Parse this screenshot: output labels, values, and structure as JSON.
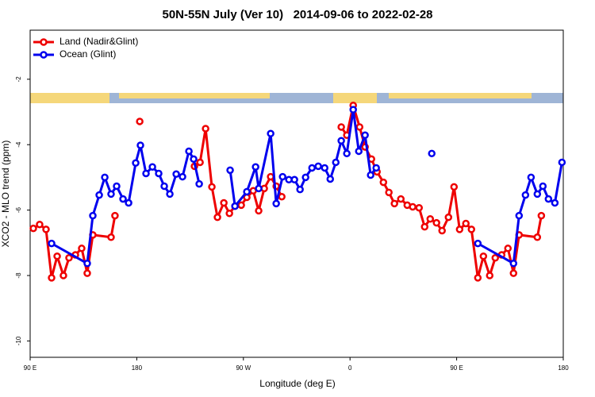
{
  "chart_data": {
    "type": "line",
    "title": "50N-55N July (Ver 10)   2014-09-06 to 2022-02-28",
    "xlabel": "Longitude (deg E)",
    "ylabel": "XCO2 - MLO trend (ppm)",
    "xlim": [
      90,
      540
    ],
    "xticks": [
      {
        "value": 90,
        "label": "90 E"
      },
      {
        "value": 180,
        "label": "180"
      },
      {
        "value": 270,
        "label": "90 W"
      },
      {
        "value": 360,
        "label": "0"
      },
      {
        "value": 450,
        "label": "90 E"
      },
      {
        "value": 540,
        "label": "180"
      }
    ],
    "ylim": [
      -10.5,
      -0.5
    ],
    "yticks": [
      -2,
      -4,
      -6,
      -8,
      -10
    ],
    "legend": "upper left",
    "series": [
      {
        "name": "Land (Nadir&Glint)",
        "color": "#ee0000",
        "x": [
          92.7,
          98.0,
          103.4,
          108.1,
          112.8,
          118.1,
          122.8,
          128.2,
          133.5,
          138.2,
          142.9,
          158.3,
          161.6,
          172,
          182.5,
          205,
          228.7,
          233.4,
          238.1,
          243.4,
          248.1,
          253.5,
          258.2,
          262.9,
          268.2,
          272.9,
          278.3,
          282.9,
          287.6,
          293.0,
          297.7,
          302.4,
          327,
          352.6,
          357.3,
          362.7,
          368.1,
          372.7,
          378.1,
          382.8,
          388.2,
          392.8,
          397.5,
          402.9,
          408.3,
          412.9,
          418.3,
          423.0,
          427.7,
          433.0,
          437.7,
          443.1,
          447.8,
          452.5,
          457.8,
          462.5,
          467.9,
          472.6,
          477.9,
          482.6,
          488.0,
          493.3,
          498.0,
          502.7,
          518.1,
          521.5
        ],
        "values": [
          -6.56,
          -6.44,
          -6.59,
          -8.07,
          -7.41,
          -8.0,
          -7.46,
          -7.37,
          -7.17,
          -7.93,
          -6.76,
          -6.83,
          -6.17,
          null,
          -3.29,
          null,
          -4.66,
          -4.54,
          -3.51,
          -5.29,
          -6.22,
          -5.78,
          -6.1,
          -5.88,
          -5.85,
          -5.61,
          -5.41,
          -6.02,
          -5.34,
          -4.98,
          -5.27,
          -5.59,
          null,
          -3.46,
          -3.71,
          -2.8,
          -3.46,
          -4.07,
          -4.44,
          -4.83,
          -5.15,
          -5.46,
          -5.8,
          -5.66,
          -5.85,
          -5.9,
          -5.93,
          -6.51,
          -6.27,
          -6.39,
          -6.63,
          -6.22,
          -5.29,
          -6.59,
          -6.41,
          -6.59,
          -8.07,
          -7.41,
          -8.0,
          -7.46,
          -7.37,
          -7.17,
          -7.93,
          -6.76,
          -6.83,
          -6.17
        ]
      },
      {
        "name": "Ocean (Glint)",
        "color": "#0000ee",
        "x": [
          108.1,
          138.2,
          142.9,
          148.3,
          153.0,
          158.3,
          163.0,
          168.4,
          173.1,
          179.1,
          183.1,
          187.8,
          193.2,
          198.5,
          203.2,
          207.9,
          213.3,
          218.6,
          224.0,
          228.0,
          232.7,
          249,
          258.8,
          262.9,
          272.9,
          280.3,
          282.9,
          293.0,
          297.7,
          303.1,
          308.4,
          313.1,
          317.8,
          322.5,
          327.9,
          333.2,
          338.6,
          343.3,
          348.0,
          352.6,
          357.3,
          362.7,
          367.4,
          372.7,
          377.4,
          382.1,
          420,
          429.0,
          445,
          467.9,
          498.0,
          502.7,
          508.1,
          512.8,
          518.1,
          522.8,
          527.5,
          532.9,
          538.9
        ],
        "values": [
          -7.02,
          -7.63,
          -6.17,
          -5.54,
          -5.0,
          -5.51,
          -5.27,
          -5.66,
          -5.78,
          -4.56,
          -4.02,
          -4.88,
          -4.68,
          -4.88,
          -5.27,
          -5.51,
          -4.9,
          -4.98,
          -4.2,
          -4.44,
          -5.2,
          null,
          -4.78,
          -5.88,
          -5.44,
          -4.68,
          -5.34,
          -3.66,
          -5.8,
          -4.98,
          -5.07,
          -5.07,
          -5.37,
          -5.0,
          -4.71,
          -4.66,
          -4.71,
          -5.05,
          -4.54,
          -3.88,
          -4.27,
          -2.93,
          -4.2,
          -3.71,
          -4.93,
          -4.71,
          null,
          -4.27,
          null,
          -7.02,
          -7.63,
          -6.17,
          -5.54,
          -5.0,
          -5.51,
          -5.27,
          -5.66,
          -5.78,
          -4.54
        ]
      }
    ]
  }
}
